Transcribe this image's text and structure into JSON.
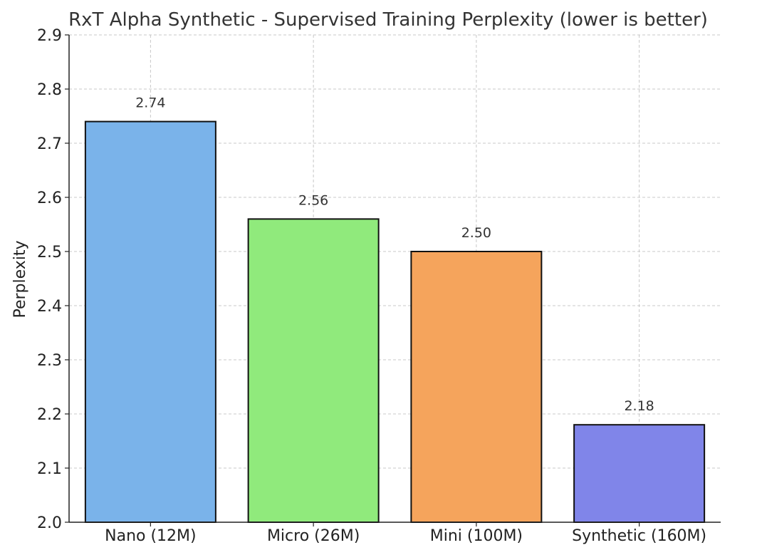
{
  "chart_data": {
    "type": "bar",
    "title": "RxT Alpha Synthetic - Supervised Training Perplexity (lower is better)",
    "xlabel": "",
    "ylabel": "Perplexity",
    "categories": [
      "Nano (12M)",
      "Micro (26M)",
      "Mini (100M)",
      "Synthetic (160M)"
    ],
    "values": [
      2.74,
      2.56,
      2.5,
      2.18
    ],
    "value_labels": [
      "2.74",
      "2.56",
      "2.50",
      "2.18"
    ],
    "colors": [
      "#7ab3ea",
      "#90ea7c",
      "#f5a45c",
      "#8085e9"
    ],
    "edge_color": "#111111",
    "ylim": [
      2.0,
      2.9
    ],
    "yticks": [
      2.0,
      2.1,
      2.2,
      2.3,
      2.4,
      2.5,
      2.6,
      2.7,
      2.8,
      2.9
    ],
    "ytick_labels": [
      "2.0",
      "2.1",
      "2.2",
      "2.3",
      "2.4",
      "2.5",
      "2.6",
      "2.7",
      "2.8",
      "2.9"
    ],
    "grid": true,
    "legend": "none"
  }
}
